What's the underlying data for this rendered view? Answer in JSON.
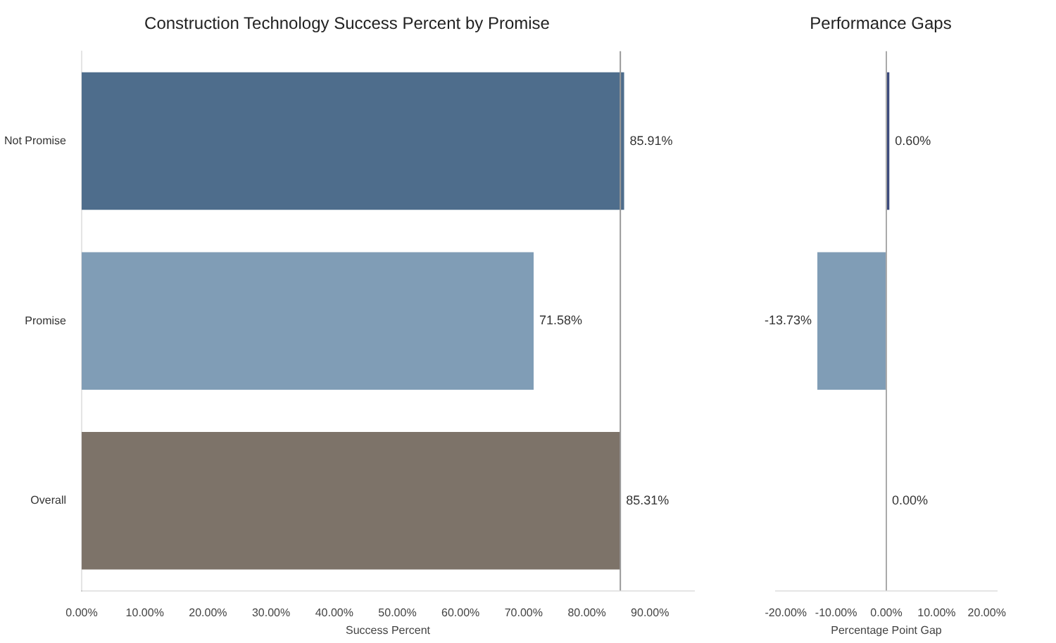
{
  "chart_data": [
    {
      "type": "bar",
      "orientation": "horizontal",
      "title": "Construction Technology Success Percent by Promise",
      "xlabel": "Success Percent",
      "categories": [
        "Not Promise",
        "Promise",
        "Overall"
      ],
      "values": [
        85.91,
        71.58,
        85.31
      ],
      "value_labels": [
        "85.91%",
        "71.58%",
        "85.31%"
      ],
      "colors": [
        "#4e6d8c",
        "#809db6",
        "#7d7369"
      ],
      "xlim": [
        0,
        97
      ],
      "xticks": [
        {
          "value": 0,
          "label": "0.00%"
        },
        {
          "value": 10,
          "label": "10.00%"
        },
        {
          "value": 20,
          "label": "20.00%"
        },
        {
          "value": 30,
          "label": "30.00%"
        },
        {
          "value": 40,
          "label": "40.00%"
        },
        {
          "value": 50,
          "label": "50.00%"
        },
        {
          "value": 60,
          "label": "60.00%"
        },
        {
          "value": 70,
          "label": "70.00%"
        },
        {
          "value": 80,
          "label": "80.00%"
        },
        {
          "value": 90,
          "label": "90.00%"
        }
      ],
      "ref_lines": [
        {
          "axis": "x",
          "value": 85.31,
          "color": "#999999"
        }
      ],
      "grid": false
    },
    {
      "type": "bar",
      "orientation": "horizontal",
      "title": "Performance Gaps",
      "xlabel": "Percentage Point Gap",
      "categories": [
        null,
        null,
        null
      ],
      "values": [
        0.6,
        -13.73,
        0
      ],
      "value_labels": [
        "0.60%",
        "-13.73%",
        "0.00%"
      ],
      "colors": [
        "#3b4a7c",
        "#809db6",
        "#888888"
      ],
      "xlim": [
        -22,
        22
      ],
      "xticks": [
        {
          "value": -20,
          "label": "-20.00%"
        },
        {
          "value": -10,
          "label": "-10.00%"
        },
        {
          "value": 0,
          "label": "0.00%"
        },
        {
          "value": 10,
          "label": "10.00%"
        },
        {
          "value": 20,
          "label": "20.00%"
        }
      ],
      "ref_lines": [
        {
          "axis": "x",
          "value": 0,
          "color": "#aaaaaa"
        }
      ],
      "tick_labels": "x",
      "grid": false
    }
  ]
}
